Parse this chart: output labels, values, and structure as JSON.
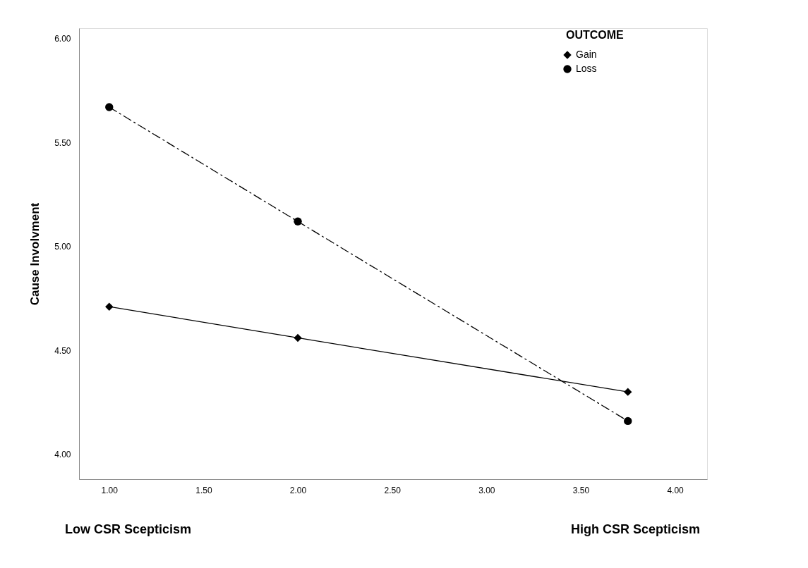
{
  "chart_data": {
    "type": "line",
    "xlabel": null,
    "ylabel": "Cause Involvment",
    "legend_title": "OUTCOME",
    "legend": "top right",
    "grid": false,
    "x": [
      1.0,
      2.0,
      3.75
    ],
    "series": [
      {
        "name": "Gain",
        "color": "#000000",
        "values": [
          4.71,
          4.56,
          4.3
        ],
        "marker": "diamond",
        "line_style": "solid"
      },
      {
        "name": "Loss",
        "color": "#000000",
        "values": [
          5.67,
          5.12,
          4.16
        ],
        "marker": "circle",
        "line_style": "dashed"
      }
    ],
    "xlim": [
      0.84,
      4.17
    ],
    "xticks": [
      {
        "value": 1,
        "label": "1.00"
      },
      {
        "value": 1.5,
        "label": "1.50"
      },
      {
        "value": 2,
        "label": "2.00"
      },
      {
        "value": 2.5,
        "label": "2.50"
      },
      {
        "value": 3,
        "label": "3.00"
      },
      {
        "value": 3.5,
        "label": "3.50"
      },
      {
        "value": 4,
        "label": "4.00"
      }
    ],
    "ylim": [
      3.88,
      6.05
    ],
    "yticks": [
      {
        "value": 4,
        "label": "4.00"
      },
      {
        "value": 4.5,
        "label": "4.50"
      },
      {
        "value": 5,
        "label": "5.00"
      },
      {
        "value": 5.5,
        "label": "5.50"
      },
      {
        "value": 6,
        "label": "6.00"
      }
    ],
    "annotations": [
      "Low CSR Scepticism",
      "High CSR Scepticism"
    ]
  }
}
